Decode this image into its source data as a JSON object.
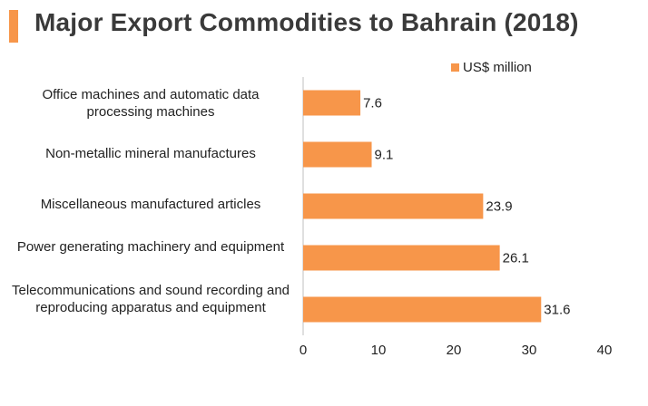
{
  "title": "Major Export Commodities to Bahrain (2018)",
  "colors": {
    "accent": "#f7964a",
    "bar": "#f7964a",
    "axis": "#bfbfbf"
  },
  "chart_data": {
    "type": "bar",
    "orientation": "horizontal",
    "categories": [
      "Office machines and automatic data processing machines",
      "Non-metallic mineral manufactures",
      "Miscellaneous manufactured articles",
      "Power generating machinery and equipment",
      "Telecommunications and sound recording and reproducing apparatus and equipment"
    ],
    "series": [
      {
        "name": "US$ million",
        "values": [
          7.6,
          9.1,
          23.9,
          26.1,
          31.6
        ]
      }
    ],
    "value_labels": [
      "7.6",
      "9.1",
      "23.9",
      "26.1",
      "31.6"
    ],
    "xlim": [
      0,
      40
    ],
    "xticks": [
      "0",
      "10",
      "20",
      "30",
      "40"
    ],
    "grid": false,
    "legend": "top-right"
  }
}
